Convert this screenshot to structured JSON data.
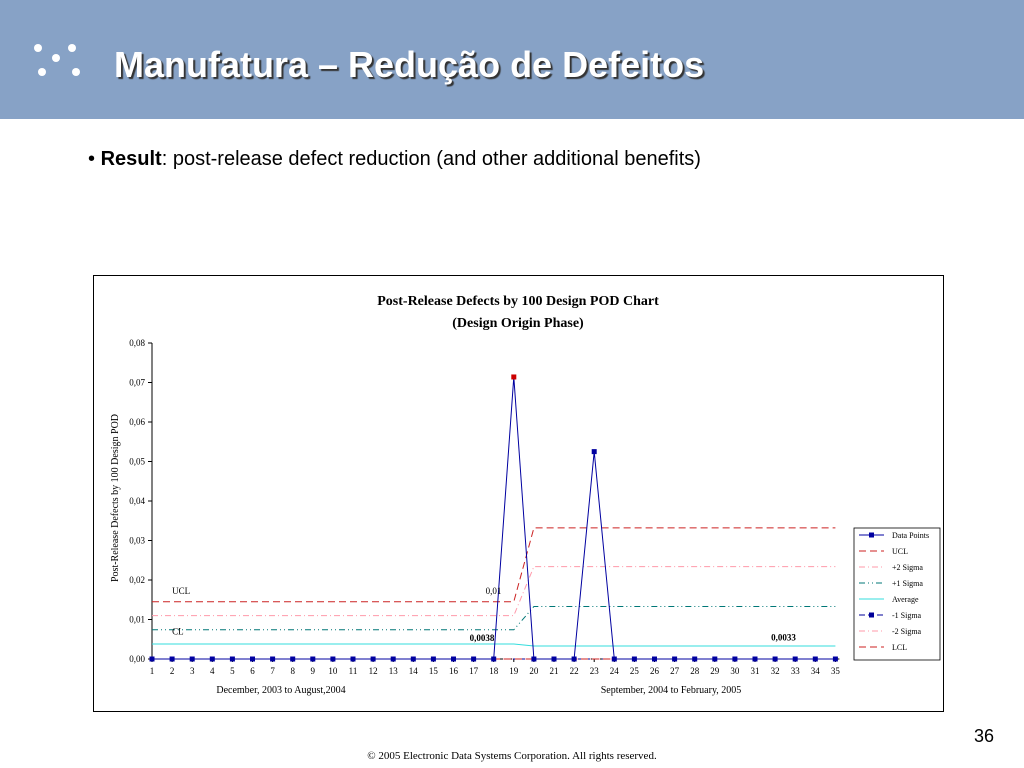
{
  "slide": {
    "title": "Manufatura – Redução de Defeitos",
    "bullet_marker": "•",
    "bullet_bold": "Result",
    "bullet_rest": ": post-release defect reduction (and other additional benefits)",
    "page_number": "36",
    "footer": "© 2005 Electronic Data Systems Corporation. All rights reserved.",
    "header_color": "#87a2c6"
  },
  "chart_data": {
    "type": "line",
    "title_line1": "Post-Release Defects by 100 Design POD Chart",
    "title_line2": "(Design Origin Phase)",
    "ylabel": "Post-Release Defects by 100 Design POD",
    "xlabel_left": "December, 2003 to August,2004",
    "xlabel_right": "September, 2004 to February, 2005",
    "ylim": [
      0,
      0.08
    ],
    "yticks": [
      "0,00",
      "0,01",
      "0,02",
      "0,03",
      "0,04",
      "0,05",
      "0,06",
      "0,07",
      "0,08"
    ],
    "x": [
      1,
      2,
      3,
      4,
      5,
      6,
      7,
      8,
      9,
      10,
      11,
      12,
      13,
      14,
      15,
      16,
      17,
      18,
      19,
      20,
      21,
      22,
      23,
      24,
      25,
      26,
      27,
      28,
      29,
      30,
      31,
      32,
      33,
      34,
      35
    ],
    "series": [
      {
        "name": "Data Points",
        "color": "#0000a0",
        "values": [
          0,
          0,
          0,
          0,
          0,
          0,
          0,
          0,
          0,
          0,
          0,
          0,
          0,
          0,
          0,
          0,
          0,
          0,
          0.0714,
          0,
          0,
          0,
          0.0525,
          0,
          0,
          0,
          0,
          0,
          0,
          0,
          0,
          0,
          0,
          0,
          0
        ]
      },
      {
        "name": "UCL",
        "color": "#cc2222",
        "segments": [
          [
            1,
            19,
            0.0145
          ],
          [
            20,
            35,
            0.0332
          ]
        ]
      },
      {
        "name": "+2 Sigma",
        "color": "#ff99aa",
        "segments": [
          [
            1,
            19,
            0.011
          ],
          [
            20,
            35,
            0.0234
          ]
        ]
      },
      {
        "name": "+1 Sigma",
        "color": "#007777",
        "segments": [
          [
            1,
            19,
            0.0074
          ],
          [
            20,
            35,
            0.0133
          ]
        ]
      },
      {
        "name": "Average",
        "color": "#33dddd",
        "segments": [
          [
            1,
            19,
            0.0038
          ],
          [
            20,
            35,
            0.0033
          ]
        ]
      },
      {
        "name": "-1 Sigma",
        "color": "#000099",
        "segments": [
          [
            1,
            19,
            0.0
          ],
          [
            20,
            35,
            0.0
          ]
        ]
      },
      {
        "name": "-2 Sigma",
        "color": "#ff99aa",
        "segments": [
          [
            1,
            19,
            0.0
          ],
          [
            20,
            35,
            0.0
          ]
        ]
      },
      {
        "name": "LCL",
        "color": "#cc2222",
        "segments": [
          [
            1,
            19,
            0.0
          ],
          [
            20,
            35,
            0.0
          ]
        ]
      }
    ],
    "highlight_point": {
      "x": 19,
      "color": "#cc0000"
    },
    "annotations": [
      {
        "text": "UCL",
        "x": 2,
        "y": 0.0165
      },
      {
        "text": "CL",
        "x": 2,
        "y": 0.0062
      },
      {
        "text": "0,01",
        "x": 17.6,
        "y": 0.0165
      },
      {
        "text": "0,0038",
        "x": 16.8,
        "y": 0.0045,
        "bold": true
      },
      {
        "text": "0,0033",
        "x": 31.8,
        "y": 0.0047,
        "bold": true
      }
    ],
    "legend_position": "right"
  }
}
